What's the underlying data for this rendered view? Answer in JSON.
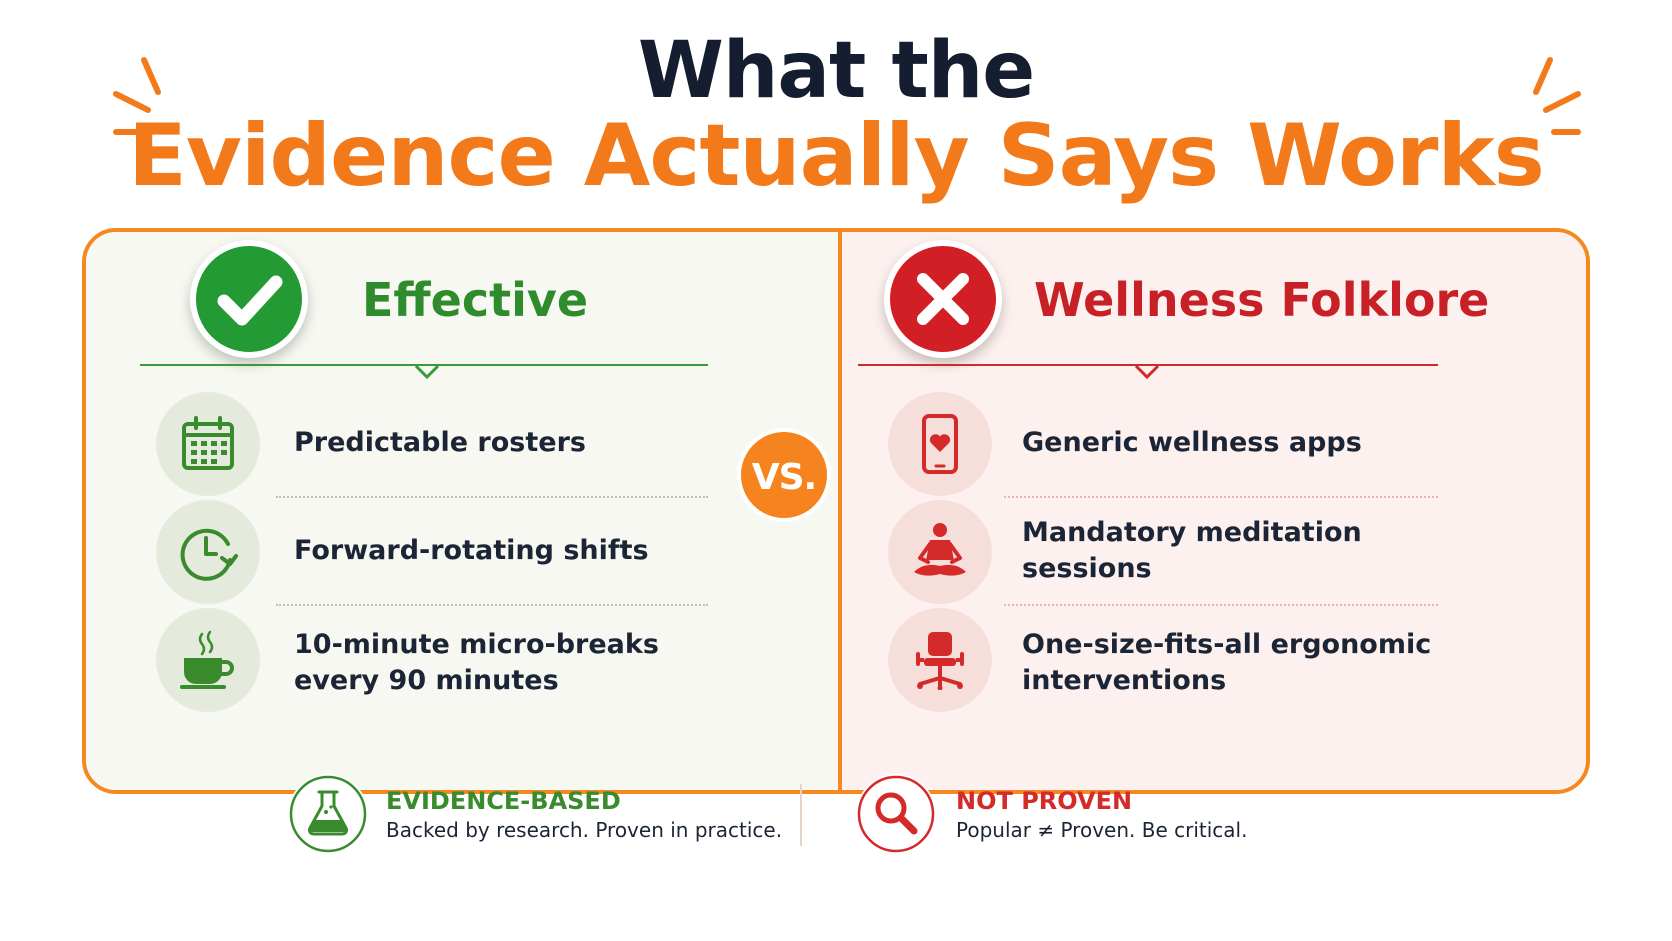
{
  "title": {
    "line1": "What the",
    "line2": "Evidence Actually Says Works"
  },
  "colors": {
    "accent_orange": "#f37a1b",
    "effective_green": "#2f8c2c",
    "folklore_red": "#c72027"
  },
  "left_column": {
    "heading": "Effective",
    "badge_icon": "checkmark-icon",
    "items": [
      {
        "label": "Predictable rosters",
        "icon": "calendar-icon"
      },
      {
        "label": "Forward-rotating shifts",
        "icon": "clock-forward-icon"
      },
      {
        "label_line1": "10-minute micro-breaks",
        "label_line2": "every 90 minutes",
        "icon": "coffee-cup-icon"
      }
    ]
  },
  "right_column": {
    "heading": "Wellness Folklore",
    "badge_icon": "cross-icon",
    "items": [
      {
        "label": "Generic wellness apps",
        "icon": "phone-heart-icon"
      },
      {
        "label_line1": "Mandatory meditation",
        "label_line2": "sessions",
        "icon": "meditation-icon"
      },
      {
        "label_line1": "One-size-fits-all ergonomic",
        "label_line2": "interventions",
        "icon": "office-chair-icon"
      }
    ]
  },
  "versus": "VS.",
  "footer": {
    "left": {
      "heading": "EVIDENCE-BASED",
      "subtext": "Backed by research. Proven in practice.",
      "icon": "flask-icon"
    },
    "right": {
      "heading": "NOT PROVEN",
      "subtext": "Popular ≠ Proven. Be critical.",
      "icon": "magnifier-icon"
    }
  }
}
